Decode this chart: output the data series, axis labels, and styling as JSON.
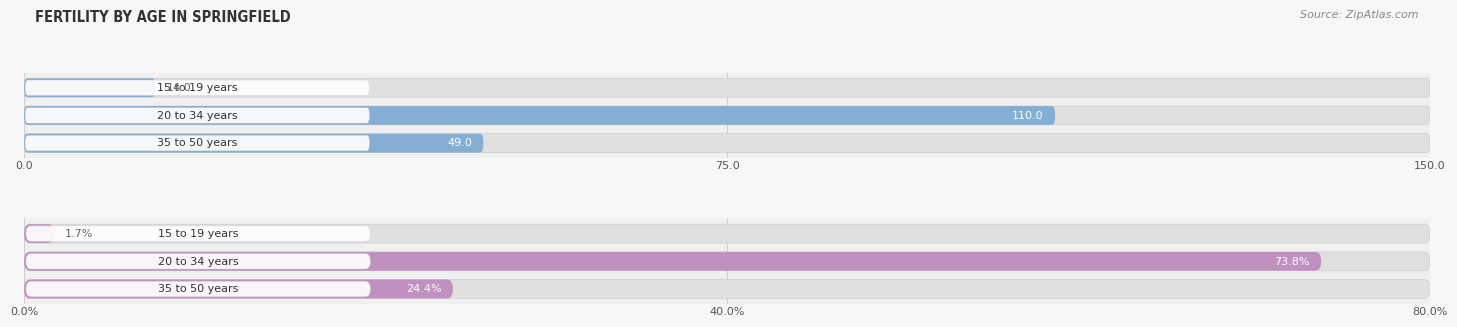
{
  "title": "FERTILITY BY AGE IN SPRINGFIELD",
  "source": "Source: ZipAtlas.com",
  "top_chart": {
    "categories": [
      "15 to 19 years",
      "20 to 34 years",
      "35 to 50 years"
    ],
    "values": [
      14.0,
      110.0,
      49.0
    ],
    "xlim": [
      0,
      150
    ],
    "xticks": [
      0.0,
      75.0,
      150.0
    ],
    "xtick_labels": [
      "0.0",
      "75.0",
      "150.0"
    ],
    "bar_color": "#85aed4",
    "bar_bg": "#e0e0e0"
  },
  "bottom_chart": {
    "categories": [
      "15 to 19 years",
      "20 to 34 years",
      "35 to 50 years"
    ],
    "values": [
      1.7,
      73.8,
      24.4
    ],
    "xlim": [
      0,
      80
    ],
    "xticks": [
      0.0,
      40.0,
      80.0
    ],
    "xtick_labels": [
      "0.0%",
      "40.0%",
      "80.0%"
    ],
    "bar_color": "#c090c0",
    "bar_bg": "#e0e0e0"
  },
  "fig_bg": "#f7f7f7",
  "chart_bg": "#f0f0f0",
  "label_color": "#555555",
  "value_color_inside": "#ffffff",
  "value_color_outside": "#666666",
  "title_color": "#333333",
  "source_color": "#888888",
  "pill_bg": "#f8f8f8",
  "pill_border": "#cccccc"
}
